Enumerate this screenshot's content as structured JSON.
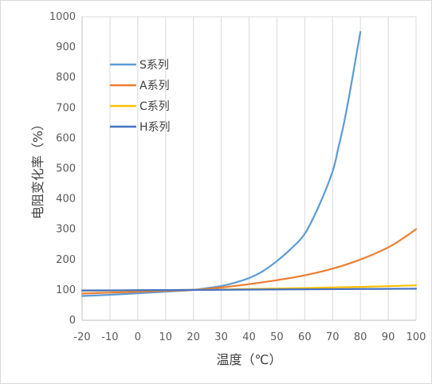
{
  "chart_data": {
    "type": "line",
    "title": "",
    "xlabel": "温度（℃）",
    "ylabel": "电阻变化率（%）",
    "xlim": [
      -20,
      100
    ],
    "ylim": [
      0,
      1000
    ],
    "x_ticks": [
      -20,
      -10,
      0,
      10,
      20,
      30,
      40,
      50,
      60,
      70,
      80,
      90,
      100
    ],
    "y_ticks": [
      0,
      100,
      200,
      300,
      400,
      500,
      600,
      700,
      800,
      900,
      1000
    ],
    "grid": "vertical",
    "legend_position": "top-left",
    "series": [
      {
        "name": "S系列",
        "color": "#5b9bd5",
        "x": [
          -20,
          -10,
          0,
          10,
          20,
          25,
          30,
          35,
          40,
          45,
          50,
          55,
          60,
          65,
          70,
          72,
          74,
          76,
          78,
          80
        ],
        "y": [
          80,
          84,
          89,
          94,
          100,
          106,
          113,
          124,
          139,
          162,
          195,
          235,
          285,
          375,
          490,
          565,
          645,
          740,
          845,
          950
        ]
      },
      {
        "name": "A系列",
        "color": "#ed7d31",
        "x": [
          -20,
          -10,
          0,
          10,
          20,
          30,
          40,
          50,
          60,
          70,
          80,
          90,
          95,
          100
        ],
        "y": [
          88,
          91,
          94,
          97,
          100,
          108,
          119,
          132,
          148,
          170,
          200,
          240,
          268,
          300
        ]
      },
      {
        "name": "C系列",
        "color": "#ffc000",
        "x": [
          -20,
          0,
          20,
          40,
          60,
          80,
          100
        ],
        "y": [
          97,
          98.5,
          100,
          103,
          106,
          110,
          115
        ]
      },
      {
        "name": "H系列",
        "color": "#4472c4",
        "x": [
          -20,
          0,
          20,
          40,
          60,
          80,
          100
        ],
        "y": [
          98,
          99,
          100,
          101,
          102,
          103,
          104
        ]
      }
    ]
  }
}
